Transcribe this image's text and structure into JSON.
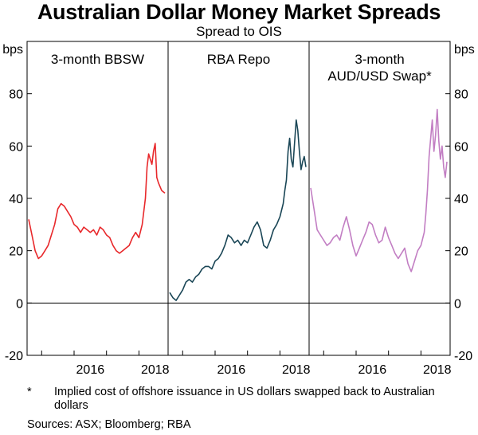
{
  "title": "Australian Dollar Money Market Spreads",
  "subtitle": "Spread to OIS",
  "footnote": {
    "mark": "*",
    "text": "Implied cost of offshore issuance in US dollars swapped back to Australian dollars"
  },
  "sources": "Sources: ASX; Bloomberg; RBA",
  "chart_data": {
    "type": "line",
    "y_unit": "bps",
    "ylim": [
      -20,
      100
    ],
    "y_ticks": [
      -20,
      0,
      20,
      40,
      60,
      80
    ],
    "x_ticks": [
      "2016",
      "2018"
    ],
    "xlim": [
      2014.6,
      2018.85
    ],
    "grid": false,
    "panels": [
      {
        "label": "3-month BBSW",
        "color": "#e8282b",
        "series": [
          {
            "name": "",
            "x": [
              2014.6,
              2014.7,
              2014.8,
              2014.9,
              2015.0,
              2015.1,
              2015.2,
              2015.3,
              2015.4,
              2015.5,
              2015.6,
              2015.7,
              2015.8,
              2015.9,
              2016.0,
              2016.1,
              2016.2,
              2016.3,
              2016.4,
              2016.5,
              2016.6,
              2016.7,
              2016.8,
              2016.9,
              2017.0,
              2017.1,
              2017.2,
              2017.3,
              2017.4,
              2017.5,
              2017.6,
              2017.7,
              2017.8,
              2017.9,
              2018.0,
              2018.1,
              2018.2,
              2018.25,
              2018.3,
              2018.35,
              2018.4,
              2018.45,
              2018.5,
              2018.55,
              2018.6,
              2018.7,
              2018.8
            ],
            "y": [
              32,
              26,
              20,
              17,
              18,
              20,
              22,
              26,
              30,
              36,
              38,
              37,
              35,
              33,
              30,
              29,
              27,
              29,
              28,
              27,
              28,
              26,
              29,
              28,
              26,
              25,
              22,
              20,
              19,
              20,
              21,
              22,
              25,
              27,
              25,
              30,
              40,
              52,
              57,
              55,
              53,
              58,
              61,
              48,
              46,
              43,
              42
            ]
          }
        ]
      },
      {
        "label": "RBA Repo",
        "color": "#1a4656",
        "series": [
          {
            "name": "",
            "x": [
              2014.6,
              2014.7,
              2014.8,
              2014.9,
              2015.0,
              2015.1,
              2015.2,
              2015.3,
              2015.4,
              2015.5,
              2015.6,
              2015.7,
              2015.8,
              2015.9,
              2016.0,
              2016.1,
              2016.2,
              2016.3,
              2016.4,
              2016.5,
              2016.6,
              2016.7,
              2016.8,
              2016.9,
              2017.0,
              2017.1,
              2017.2,
              2017.3,
              2017.4,
              2017.5,
              2017.6,
              2017.7,
              2017.8,
              2017.9,
              2018.0,
              2018.1,
              2018.15,
              2018.2,
              2018.25,
              2018.3,
              2018.35,
              2018.4,
              2018.45,
              2018.5,
              2018.55,
              2018.6,
              2018.65,
              2018.7,
              2018.75,
              2018.8
            ],
            "y": [
              4,
              2,
              1,
              3,
              5,
              8,
              9,
              8,
              10,
              11,
              13,
              14,
              14,
              13,
              16,
              17,
              19,
              22,
              26,
              25,
              23,
              24,
              22,
              24,
              23,
              26,
              29,
              31,
              28,
              22,
              21,
              24,
              28,
              30,
              33,
              38,
              43,
              47,
              58,
              63,
              55,
              52,
              61,
              70,
              66,
              58,
              51,
              54,
              56,
              52
            ]
          }
        ]
      },
      {
        "label": "3-month AUD/USD Swap*",
        "color": "#c27ec3",
        "series": [
          {
            "name": "",
            "x": [
              2014.6,
              2014.7,
              2014.8,
              2014.9,
              2015.0,
              2015.1,
              2015.2,
              2015.3,
              2015.4,
              2015.5,
              2015.6,
              2015.7,
              2015.8,
              2015.9,
              2016.0,
              2016.1,
              2016.2,
              2016.3,
              2016.4,
              2016.5,
              2016.6,
              2016.7,
              2016.8,
              2016.9,
              2017.0,
              2017.1,
              2017.2,
              2017.3,
              2017.4,
              2017.5,
              2017.6,
              2017.7,
              2017.8,
              2017.9,
              2018.0,
              2018.1,
              2018.15,
              2018.2,
              2018.25,
              2018.3,
              2018.35,
              2018.4,
              2018.45,
              2018.5,
              2018.55,
              2018.6,
              2018.65,
              2018.7,
              2018.75,
              2018.8
            ],
            "y": [
              44,
              36,
              28,
              26,
              24,
              22,
              23,
              25,
              26,
              24,
              29,
              33,
              28,
              22,
              18,
              21,
              24,
              27,
              31,
              30,
              26,
              23,
              24,
              29,
              25,
              22,
              19,
              17,
              19,
              21,
              15,
              12,
              16,
              20,
              22,
              27,
              34,
              43,
              56,
              63,
              70,
              58,
              64,
              74,
              62,
              55,
              60,
              52,
              48,
              54
            ]
          }
        ]
      }
    ]
  }
}
